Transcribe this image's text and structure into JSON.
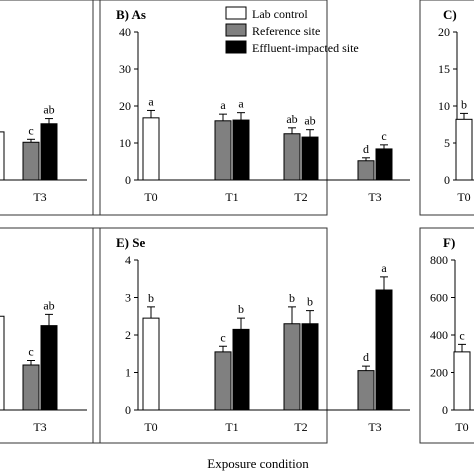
{
  "figure": {
    "xlabel": "Exposure condition"
  },
  "legend": [
    {
      "name": "Lab control",
      "color": "#ffffff"
    },
    {
      "name": "Reference site",
      "color": "#808080"
    },
    {
      "name": "Effluent-impacted site",
      "color": "#000000"
    }
  ],
  "chart_data": [
    {
      "type": "bar",
      "panel": "A",
      "title": "",
      "categories": [
        "T3"
      ],
      "series": [
        {
          "name": "Lab control",
          "values": [
            null
          ],
          "errors": [
            null
          ],
          "labels": [
            ""
          ]
        },
        {
          "name": "Reference site",
          "values": [
            10.2
          ],
          "errors": [
            0.8
          ],
          "labels": [
            "c"
          ]
        },
        {
          "name": "Effluent-impacted site",
          "values": [
            15.2
          ],
          "errors": [
            1.4
          ],
          "labels": [
            "ab"
          ]
        }
      ],
      "partial_bar": {
        "value": 13.0
      },
      "ylim": [
        0,
        40
      ],
      "yticks": []
    },
    {
      "type": "bar",
      "panel": "B",
      "title": "B) As",
      "categories": [
        "T0",
        "T1",
        "T2",
        "T3"
      ],
      "series": [
        {
          "name": "Lab control",
          "values": [
            16.8,
            null,
            null,
            null
          ],
          "errors": [
            2.0,
            null,
            null,
            null
          ],
          "labels": [
            "a",
            "",
            "",
            ""
          ]
        },
        {
          "name": "Reference site",
          "values": [
            null,
            16.0,
            12.5,
            5.2
          ],
          "errors": [
            null,
            1.8,
            1.6,
            0.8
          ],
          "labels": [
            "",
            "a",
            "ab",
            "d"
          ]
        },
        {
          "name": "Effluent-impacted site",
          "values": [
            null,
            16.2,
            11.6,
            8.4
          ],
          "errors": [
            null,
            2.0,
            2.0,
            1.1
          ],
          "labels": [
            "",
            "a",
            "ab",
            "c"
          ]
        }
      ],
      "ylim": [
        0,
        40
      ],
      "yticks": [
        0,
        10,
        20,
        30,
        40
      ],
      "legend_placement": "top-right"
    },
    {
      "type": "bar",
      "panel": "C",
      "title": "C)",
      "categories": [
        "T0"
      ],
      "series": [
        {
          "name": "Lab control",
          "values": [
            8.2
          ],
          "errors": [
            0.8
          ],
          "labels": [
            "b"
          ]
        }
      ],
      "ylim": [
        0,
        20
      ],
      "yticks": [
        0,
        5,
        10,
        15,
        20
      ]
    },
    {
      "type": "bar",
      "panel": "D",
      "title": "",
      "categories": [
        "T3"
      ],
      "series": [
        {
          "name": "Lab control",
          "values": [
            null
          ],
          "errors": [
            null
          ],
          "labels": [
            ""
          ]
        },
        {
          "name": "Reference site",
          "values": [
            1.2
          ],
          "errors": [
            0.12
          ],
          "labels": [
            "c"
          ]
        },
        {
          "name": "Effluent-impacted site",
          "values": [
            2.25
          ],
          "errors": [
            0.3
          ],
          "labels": [
            "ab"
          ]
        }
      ],
      "partial_bar": {
        "value": 2.5
      },
      "ylim": [
        0,
        4
      ],
      "yticks": []
    },
    {
      "type": "bar",
      "panel": "E",
      "title": "E) Se",
      "categories": [
        "T0",
        "T1",
        "T2",
        "T3"
      ],
      "series": [
        {
          "name": "Lab control",
          "values": [
            2.45,
            null,
            null,
            null
          ],
          "errors": [
            0.3,
            null,
            null,
            null
          ],
          "labels": [
            "b",
            "",
            "",
            ""
          ]
        },
        {
          "name": "Reference site",
          "values": [
            null,
            1.55,
            2.3,
            1.05
          ],
          "errors": [
            null,
            0.15,
            0.45,
            0.12
          ],
          "labels": [
            "",
            "c",
            "b",
            "d"
          ]
        },
        {
          "name": "Effluent-impacted site",
          "values": [
            null,
            2.15,
            2.3,
            3.2
          ],
          "errors": [
            null,
            0.3,
            0.35,
            0.35
          ],
          "labels": [
            "",
            "b",
            "b",
            "a"
          ]
        }
      ],
      "ylim": [
        0,
        4
      ],
      "yticks": [
        0,
        1,
        2,
        3,
        4
      ]
    },
    {
      "type": "bar",
      "panel": "F",
      "title": "F)",
      "categories": [
        "T0"
      ],
      "series": [
        {
          "name": "Lab control",
          "values": [
            310
          ],
          "errors": [
            40
          ],
          "labels": [
            "c"
          ]
        }
      ],
      "ylim": [
        0,
        800
      ],
      "yticks": [
        0,
        200,
        400,
        600,
        800
      ]
    }
  ]
}
